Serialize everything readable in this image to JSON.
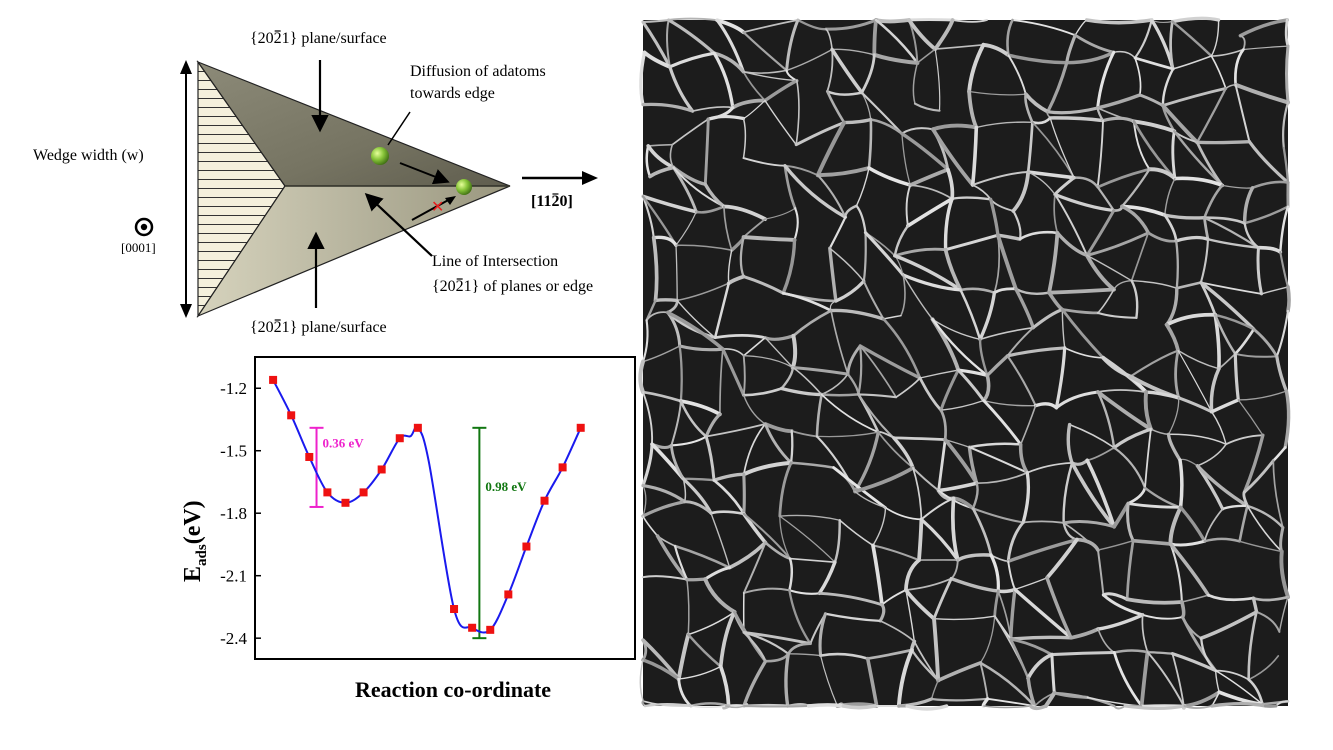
{
  "schematic": {
    "top_plane_label": "{2021} plane/surface",
    "bottom_plane_label": "{2021} plane/surface",
    "wedge_width_label": "Wedge width (w)",
    "axis_0001_label": "[0001]",
    "direction_label": "[1120]",
    "diffusion_label_line1": "Diffusion of adatoms",
    "diffusion_label_line2": "towards edge",
    "intersection_label_line1": "Line of Intersection",
    "intersection_label_line2": "{2021} of planes or edge"
  },
  "chart_data": {
    "type": "line",
    "xlabel": "Reaction co-ordinate",
    "ylabel": "E",
    "ylabel_sub": "ads",
    "ylabel_unit": "(eV)",
    "yticks": [
      "-1.2",
      "-1.5",
      "-1.8",
      "-2.1",
      "-2.4"
    ],
    "ylim": [
      -2.5,
      -1.05
    ],
    "xlim": [
      0,
      21
    ],
    "series": [
      {
        "points": [
          [
            1,
            -1.16
          ],
          [
            2,
            -1.33
          ],
          [
            3,
            -1.53
          ],
          [
            4,
            -1.7
          ],
          [
            5,
            -1.75
          ],
          [
            6,
            -1.7
          ],
          [
            7,
            -1.59
          ],
          [
            8,
            -1.44
          ],
          [
            9,
            -1.39
          ],
          [
            11,
            -2.26
          ],
          [
            12,
            -2.35
          ],
          [
            13,
            -2.36
          ],
          [
            14,
            -2.19
          ],
          [
            15,
            -1.96
          ],
          [
            16,
            -1.74
          ],
          [
            17,
            -1.58
          ],
          [
            18,
            -1.39
          ]
        ],
        "marker_color": "#ee1111",
        "line_color": "#1a1aee"
      }
    ],
    "annotations": [
      {
        "text": "0.36 eV",
        "color": "#ee22cc",
        "x": 3.4,
        "y_top": -1.39,
        "y_bottom": -1.77
      },
      {
        "text": "0.98 eV",
        "color": "#117711",
        "x": 12.4,
        "y_top": -1.39,
        "y_bottom": -2.4
      }
    ],
    "grid": false,
    "legend": "none"
  },
  "micrograph": {
    "colors": {
      "background": "#1c1c1c",
      "wall": "#bdbdbd"
    }
  }
}
